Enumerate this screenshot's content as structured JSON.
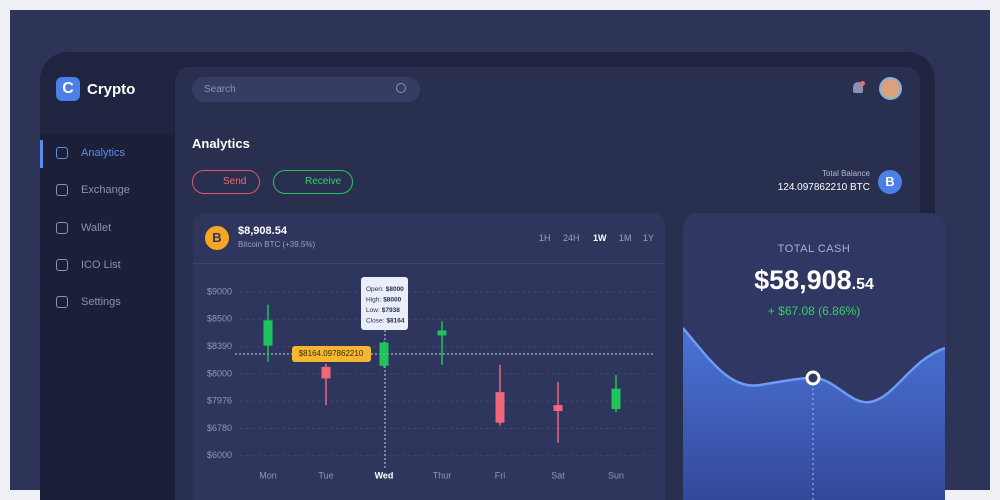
{
  "app": {
    "brand": "Crypto",
    "search_placeholder": "Search"
  },
  "sidebar": {
    "items": [
      "Analytics",
      "Exchange",
      "Wallet",
      "ICO List",
      "Settings"
    ]
  },
  "page_title": "Analytics",
  "actions": [
    "Send",
    "Receive"
  ],
  "balance": {
    "label": "Total Balance",
    "value": "124.097862210 BTC"
  },
  "coin": {
    "price": "$8,908.54",
    "name": "Bitcoin BTC (+39.5%)",
    "periods": [
      "1H",
      "24H",
      "1W",
      "1M",
      "1Y"
    ]
  },
  "tooltip": [
    {
      "label": "Open:",
      "value": "$8000"
    },
    {
      "label": "High:",
      "value": "$8000"
    },
    {
      "label": "Low:",
      "value": "$7938"
    },
    {
      "label": "Close:",
      "value": "$8164"
    }
  ],
  "crosshair_label": "$8164.097862210",
  "total_cash": {
    "title": "TOTAL CASH",
    "amount": "$58,908",
    "cents": ".54",
    "change": "+ $67.08 (6.86%)"
  },
  "chart_data": {
    "type": "candlestick",
    "categories": [
      "Mon",
      "Tue",
      "Wed",
      "Thur",
      "Fri",
      "Sat",
      "Sun"
    ],
    "open": [
      8394,
      8101,
      8116,
      8435,
      7984,
      7805,
      7634
    ],
    "high": [
      8768,
      8144,
      8410,
      8492,
      8130,
      7993,
      7999
    ],
    "low": [
      8173,
      7805,
      8087,
      8130,
      6908,
      6375,
      7506
    ],
    "close": [
      8496,
      7996,
      8406,
      8455,
      7036,
      7549,
      7987
    ],
    "up_color": "#1fc45a",
    "down_color": "#f0677a",
    "ylim": [
      6000,
      9000
    ],
    "yticks": [
      {
        "value": 9000,
        "label": "$9000"
      },
      {
        "value": 8500,
        "label": "$8500"
      },
      {
        "value": 8390,
        "label": "$8390"
      },
      {
        "value": 8000,
        "label": "$8000"
      },
      {
        "value": 7976,
        "label": "$7976"
      },
      {
        "value": 6780,
        "label": "$6780"
      },
      {
        "value": 6000,
        "label": "$6000"
      }
    ],
    "grid": true
  }
}
